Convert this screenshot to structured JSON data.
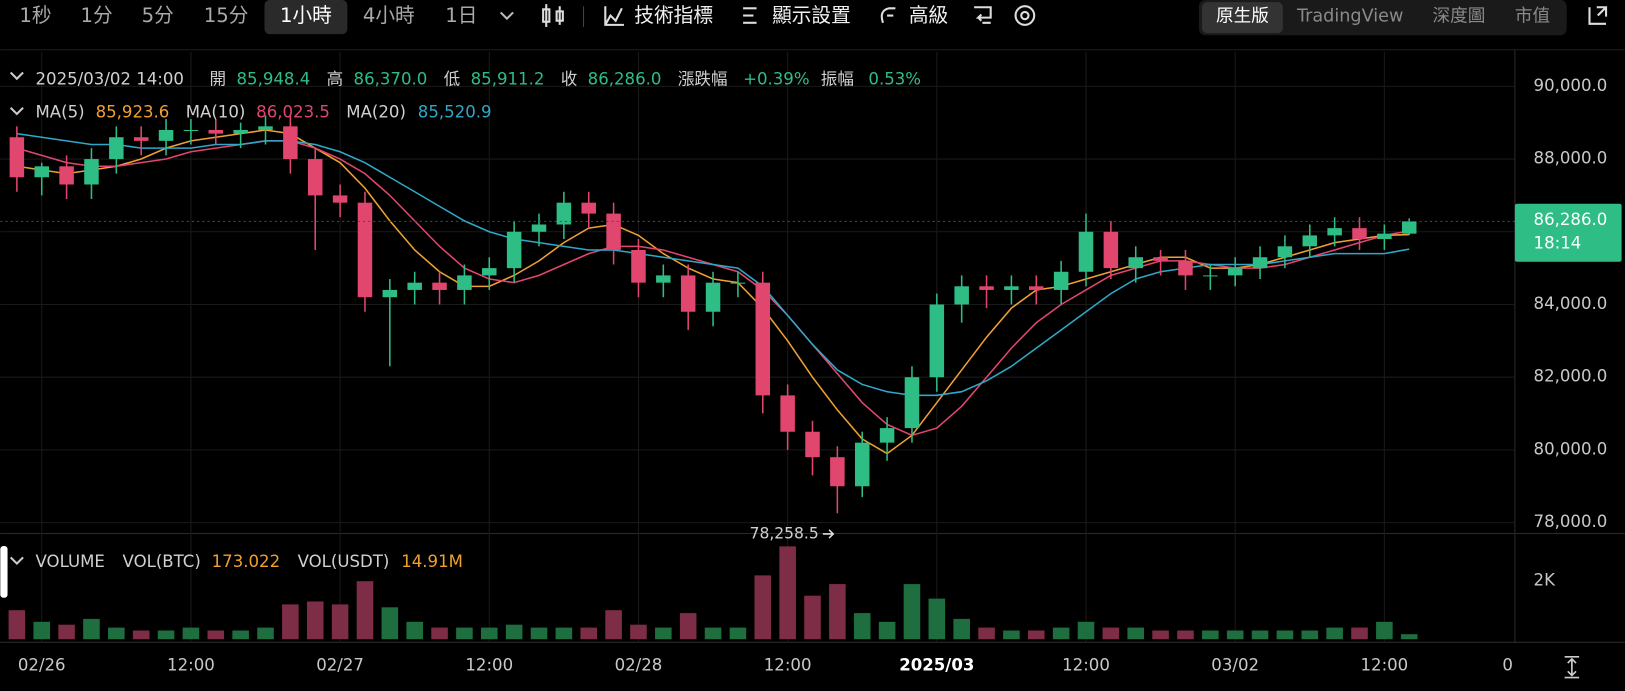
{
  "toolbar": {
    "intervals": [
      "1秒",
      "1分",
      "5分",
      "15分",
      "1小時",
      "4小時",
      "1日"
    ],
    "active": "1小時",
    "tools": [
      "技術指標",
      "顯示設置",
      "高級"
    ],
    "views": [
      "原生版",
      "TradingView",
      "深度圖",
      "市值"
    ],
    "active_view": "原生版"
  },
  "chart_data": {
    "type": "candlestick",
    "ohlc_legend": {
      "time": "2025/03/02 14:00",
      "labels": [
        "開",
        "高",
        "低",
        "收",
        "漲跌幅",
        "振幅"
      ],
      "values": [
        "85,948.4",
        "86,370.0",
        "85,911.2",
        "86,286.0",
        "+0.39%",
        "0.53%"
      ]
    },
    "up_color": "#2ebd85",
    "down_color": "#e0466e",
    "open": [
      88600,
      87500,
      87800,
      87300,
      88000,
      88600,
      88500,
      88800,
      88800,
      88700,
      88800,
      88900,
      88000,
      87000,
      86800,
      84200,
      84400,
      84600,
      84400,
      84800,
      85000,
      86000,
      86200,
      86800,
      86500,
      85500,
      84600,
      84800,
      83800,
      84600,
      84600,
      81500,
      80500,
      79800,
      79000,
      80200,
      80600,
      82000,
      84000,
      84500,
      84400,
      84500,
      84400,
      84900,
      86000,
      85000,
      85300,
      85200,
      84800,
      84800,
      85000,
      85300,
      85600,
      85900,
      86100,
      85800,
      85948.4
    ],
    "high": [
      88900,
      87900,
      88100,
      88300,
      88900,
      88900,
      89100,
      89100,
      89100,
      89000,
      89200,
      89200,
      88300,
      87300,
      87100,
      84700,
      84900,
      84900,
      85100,
      85300,
      86300,
      86500,
      87100,
      87100,
      86800,
      85800,
      85100,
      85100,
      84900,
      84900,
      84900,
      81800,
      80800,
      80100,
      80500,
      80900,
      82300,
      84300,
      84800,
      84800,
      84800,
      84800,
      85200,
      86500,
      86300,
      85600,
      85500,
      85500,
      85100,
      85300,
      85600,
      85900,
      86200,
      86400,
      86400,
      86200,
      86370
    ],
    "low": [
      87100,
      87000,
      86900,
      86900,
      87600,
      88100,
      88100,
      88400,
      88400,
      88300,
      88400,
      87600,
      85500,
      86400,
      83800,
      82300,
      84000,
      84000,
      84000,
      84400,
      84600,
      85600,
      85800,
      86100,
      85100,
      84200,
      84200,
      83300,
      83400,
      84200,
      81000,
      80000,
      79300,
      78258.5,
      78700,
      79700,
      80200,
      81600,
      83500,
      83900,
      84000,
      84000,
      84000,
      84500,
      84700,
      84600,
      84800,
      84400,
      84400,
      84500,
      84700,
      85000,
      85300,
      85600,
      85500,
      85500,
      85911.2
    ],
    "close": [
      87500,
      87800,
      87300,
      88000,
      88600,
      88500,
      88800,
      88800,
      88700,
      88800,
      88900,
      88000,
      87000,
      86800,
      84200,
      84400,
      84600,
      84400,
      84800,
      85000,
      86000,
      86200,
      86800,
      86500,
      85500,
      84600,
      84800,
      83800,
      84600,
      84600,
      81500,
      80500,
      79800,
      79000,
      80200,
      80600,
      82000,
      84000,
      84500,
      84400,
      84500,
      84400,
      84900,
      86000,
      85000,
      85300,
      85200,
      84800,
      84800,
      85000,
      85300,
      85600,
      85900,
      86100,
      85800,
      85948.4,
      86286
    ],
    "series": [
      {
        "name": "MA(5)",
        "color": "#f0a030",
        "value_label": "85,923.6",
        "values": [
          87800,
          87700,
          87600,
          87700,
          87800,
          88000,
          88300,
          88500,
          88600,
          88700,
          88800,
          88700,
          88300,
          87900,
          87200,
          86300,
          85500,
          84900,
          84500,
          84500,
          84800,
          85200,
          85700,
          86100,
          86200,
          85900,
          85400,
          85000,
          84700,
          84600,
          83900,
          83000,
          82000,
          81100,
          80300,
          79900,
          80400,
          81300,
          82200,
          83100,
          83900,
          84400,
          84500,
          84700,
          84900,
          85100,
          85300,
          85300,
          85000,
          85000,
          85100,
          85300,
          85500,
          85700,
          85800,
          85900,
          85923.6
        ]
      },
      {
        "name": "MA(10)",
        "color": "#e0466e",
        "value_label": "86,023.5",
        "values": [
          88300,
          88100,
          87900,
          87800,
          87800,
          87900,
          88000,
          88200,
          88300,
          88400,
          88500,
          88500,
          88300,
          88000,
          87600,
          87000,
          86300,
          85600,
          85000,
          84700,
          84600,
          84800,
          85100,
          85400,
          85600,
          85600,
          85500,
          85300,
          85100,
          84900,
          84400,
          83700,
          82900,
          82100,
          81300,
          80700,
          80400,
          80600,
          81200,
          82000,
          82800,
          83500,
          84000,
          84400,
          84800,
          85000,
          85200,
          85200,
          85100,
          85000,
          85000,
          85100,
          85300,
          85500,
          85700,
          85900,
          86023.5
        ]
      },
      {
        "name": "MA(20)",
        "color": "#2fa8c8",
        "value_label": "85,520.9",
        "values": [
          88700,
          88600,
          88500,
          88400,
          88400,
          88300,
          88300,
          88300,
          88400,
          88400,
          88500,
          88500,
          88400,
          88200,
          87900,
          87500,
          87100,
          86700,
          86300,
          86000,
          85800,
          85700,
          85600,
          85500,
          85500,
          85400,
          85300,
          85200,
          85100,
          85000,
          84500,
          83700,
          82900,
          82200,
          81800,
          81600,
          81500,
          81500,
          81600,
          81900,
          82300,
          82800,
          83300,
          83800,
          84300,
          84700,
          84900,
          85000,
          85100,
          85100,
          85100,
          85200,
          85300,
          85400,
          85400,
          85400,
          85520.9
        ]
      }
    ],
    "ylim": [
      77700,
      90950
    ],
    "yticks": [
      {
        "value": 90000,
        "label": "90,000.0"
      },
      {
        "value": 88000,
        "label": "88,000.0"
      },
      {
        "value": 86000,
        "label": "86,000.0"
      },
      {
        "value": 84000,
        "label": "84,000.0"
      },
      {
        "value": 82000,
        "label": "82,000.0"
      },
      {
        "value": 80000,
        "label": "80,000.0"
      },
      {
        "value": 78000,
        "label": "78,000.0"
      }
    ],
    "xlim": [
      -0.667,
      60.25
    ],
    "xticks": [
      {
        "value": 1,
        "label": "02/26"
      },
      {
        "value": 7,
        "label": "12:00"
      },
      {
        "value": 13,
        "label": "02/27"
      },
      {
        "value": 19,
        "label": "12:00"
      },
      {
        "value": 25,
        "label": "02/28"
      },
      {
        "value": 31,
        "label": "12:00"
      },
      {
        "value": 37,
        "label": "2025/03"
      },
      {
        "value": 43,
        "label": "12:00"
      },
      {
        "value": 49,
        "label": "03/02"
      },
      {
        "value": 55,
        "label": "12:00"
      }
    ],
    "axis_corner": "0",
    "price_tag": {
      "value": 86286,
      "label": "86,286.0",
      "countdown": "18:14"
    },
    "low_marker": {
      "value": 78258.5,
      "label": "78,258.5"
    },
    "grid": true,
    "volume": {
      "name": "VOLUME",
      "legend": [
        "VOL(BTC)",
        "173.022",
        "VOL(USDT)",
        "14.91M"
      ],
      "values": [
        1000,
        600,
        500,
        700,
        400,
        300,
        300,
        400,
        300,
        300,
        400,
        1200,
        1300,
        1200,
        2000,
        1100,
        600,
        400,
        400,
        400,
        500,
        400,
        400,
        400,
        1000,
        500,
        400,
        900,
        400,
        400,
        2200,
        3200,
        1500,
        1900,
        900,
        600,
        1900,
        1400,
        700,
        400,
        300,
        300,
        400,
        600,
        400,
        400,
        300,
        300,
        300,
        300,
        300,
        300,
        300,
        400,
        400,
        600,
        173.022
      ],
      "up_color": "#1f6e40",
      "down_color": "#7e2d46",
      "ylim": [
        0,
        3500
      ],
      "yticks": [
        {
          "value": 2000,
          "label": "2K"
        }
      ]
    }
  }
}
